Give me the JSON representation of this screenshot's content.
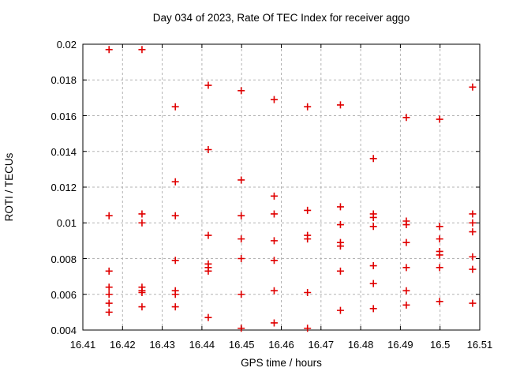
{
  "chart_data": {
    "type": "scatter",
    "title": "Day 034 of 2023, Rate Of TEC Index for receiver aggo",
    "xlabel": "GPS time / hours",
    "ylabel": "ROTI / TECUs",
    "xlim": [
      16.41,
      16.51
    ],
    "ylim": [
      0.004,
      0.02
    ],
    "xticks": [
      16.41,
      16.42,
      16.43,
      16.44,
      16.45,
      16.46,
      16.47,
      16.48,
      16.49,
      16.5,
      16.51
    ],
    "xtick_labels": [
      "16.41",
      "16.42",
      "16.43",
      "16.44",
      "16.45",
      "16.46",
      "16.47",
      "16.48",
      "16.49",
      "16.5",
      "16.51"
    ],
    "yticks": [
      0.004,
      0.006,
      0.008,
      0.01,
      0.012,
      0.014,
      0.016,
      0.018,
      0.02
    ],
    "ytick_labels": [
      "0.004",
      "0.006",
      "0.008",
      "0.01",
      "0.012",
      "0.014",
      "0.016",
      "0.018",
      "0.02"
    ],
    "grid": true,
    "legend_position": "none",
    "marker": "plus",
    "marker_color": "#e00000",
    "grid_color": "#b3b3b3",
    "axis_color": "#000000",
    "background_color": "#ffffff",
    "points": [
      [
        16.4166,
        0.0197
      ],
      [
        16.4166,
        0.0104
      ],
      [
        16.4166,
        0.0073
      ],
      [
        16.4166,
        0.0064
      ],
      [
        16.4166,
        0.006
      ],
      [
        16.4166,
        0.0055
      ],
      [
        16.4166,
        0.005
      ],
      [
        16.4249,
        0.0197
      ],
      [
        16.4249,
        0.0105
      ],
      [
        16.4249,
        0.01
      ],
      [
        16.4249,
        0.0064
      ],
      [
        16.4249,
        0.0062
      ],
      [
        16.4249,
        0.0061
      ],
      [
        16.4249,
        0.0053
      ],
      [
        16.4333,
        0.0165
      ],
      [
        16.4333,
        0.0123
      ],
      [
        16.4333,
        0.0104
      ],
      [
        16.4333,
        0.0079
      ],
      [
        16.4333,
        0.0062
      ],
      [
        16.4333,
        0.006
      ],
      [
        16.4333,
        0.0053
      ],
      [
        16.4416,
        0.0177
      ],
      [
        16.4416,
        0.0141
      ],
      [
        16.4416,
        0.0093
      ],
      [
        16.4416,
        0.0077
      ],
      [
        16.4416,
        0.0075
      ],
      [
        16.4416,
        0.0073
      ],
      [
        16.4416,
        0.0047
      ],
      [
        16.4499,
        0.0174
      ],
      [
        16.4499,
        0.0124
      ],
      [
        16.4499,
        0.0104
      ],
      [
        16.4499,
        0.0091
      ],
      [
        16.4499,
        0.008
      ],
      [
        16.4499,
        0.006
      ],
      [
        16.4499,
        0.0041
      ],
      [
        16.4582,
        0.0169
      ],
      [
        16.4582,
        0.0115
      ],
      [
        16.4582,
        0.0105
      ],
      [
        16.4582,
        0.009
      ],
      [
        16.4582,
        0.0079
      ],
      [
        16.4582,
        0.0062
      ],
      [
        16.4582,
        0.0044
      ],
      [
        16.4666,
        0.0165
      ],
      [
        16.4666,
        0.0107
      ],
      [
        16.4666,
        0.0093
      ],
      [
        16.4666,
        0.0091
      ],
      [
        16.4666,
        0.0061
      ],
      [
        16.4666,
        0.0041
      ],
      [
        16.4749,
        0.0166
      ],
      [
        16.4749,
        0.0109
      ],
      [
        16.4749,
        0.0099
      ],
      [
        16.4749,
        0.0089
      ],
      [
        16.4749,
        0.0087
      ],
      [
        16.4749,
        0.0073
      ],
      [
        16.4749,
        0.0051
      ],
      [
        16.4832,
        0.0136
      ],
      [
        16.4832,
        0.0105
      ],
      [
        16.4832,
        0.0103
      ],
      [
        16.4832,
        0.0098
      ],
      [
        16.4832,
        0.0076
      ],
      [
        16.4832,
        0.0066
      ],
      [
        16.4832,
        0.0052
      ],
      [
        16.4915,
        0.0159
      ],
      [
        16.4915,
        0.0101
      ],
      [
        16.4915,
        0.0099
      ],
      [
        16.4915,
        0.0089
      ],
      [
        16.4915,
        0.0075
      ],
      [
        16.4915,
        0.0062
      ],
      [
        16.4915,
        0.0054
      ],
      [
        16.4999,
        0.0158
      ],
      [
        16.4999,
        0.0098
      ],
      [
        16.4999,
        0.0091
      ],
      [
        16.4999,
        0.0084
      ],
      [
        16.4999,
        0.0082
      ],
      [
        16.4999,
        0.0075
      ],
      [
        16.4999,
        0.0056
      ],
      [
        16.5082,
        0.0176
      ],
      [
        16.5082,
        0.0105
      ],
      [
        16.5082,
        0.01
      ],
      [
        16.5082,
        0.0095
      ],
      [
        16.5082,
        0.0081
      ],
      [
        16.5082,
        0.0074
      ],
      [
        16.5082,
        0.0055
      ]
    ]
  }
}
